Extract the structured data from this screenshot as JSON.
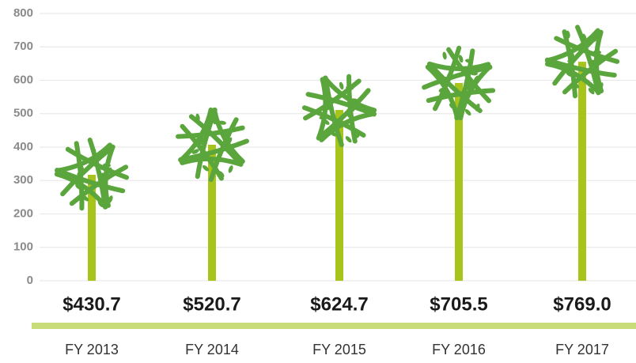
{
  "chart_data": {
    "type": "bar",
    "categories": [
      "FY 2013",
      "FY 2014",
      "FY 2015",
      "FY 2016",
      "FY 2017"
    ],
    "values": [
      430.7,
      520.7,
      624.7,
      705.5,
      769.0
    ],
    "value_labels": [
      "$430.7",
      "$520.7",
      "$624.7",
      "$705.5",
      "$769.0"
    ],
    "color": "#5aa63c",
    "trunk_color": "#a7c41b",
    "ylim": [
      0,
      800
    ],
    "yticks": [
      0,
      100,
      200,
      300,
      400,
      500,
      600,
      700,
      800
    ],
    "grid": true
  }
}
